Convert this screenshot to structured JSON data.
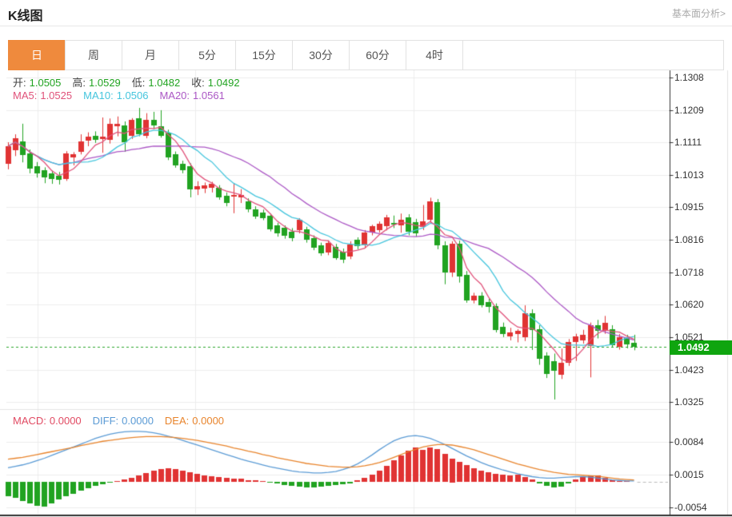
{
  "header": {
    "title": "K线图",
    "analysis_link": "基本面分析>"
  },
  "tabs": {
    "items": [
      "日",
      "周",
      "月",
      "5分",
      "15分",
      "30分",
      "60分",
      "4时"
    ],
    "active_index": 0
  },
  "legend": {
    "open_label": "开:",
    "open": "1.0505",
    "high_label": "高:",
    "high": "1.0529",
    "low_label": "低:",
    "low": "1.0482",
    "close_label": "收:",
    "close": "1.0492"
  },
  "ma_legend": {
    "ma5_label": "MA5:",
    "ma5": "1.0525",
    "ma10_label": "MA10:",
    "ma10": "1.0506",
    "ma20_label": "MA20:",
    "ma20": "1.0561"
  },
  "macd_legend": {
    "macd_label": "MACD:",
    "macd": "0.0000",
    "diff_label": "DIFF:",
    "diff": "0.0000",
    "dea_label": "DEA:",
    "dea": "0.0000"
  },
  "price_axis": {
    "ticks": [
      "1.1308",
      "1.1209",
      "1.1111",
      "1.1013",
      "1.0915",
      "1.0816",
      "1.0718",
      "1.0620",
      "1.0521",
      "1.0423",
      "1.0325"
    ],
    "current_price": "1.0492"
  },
  "macd_axis": {
    "ticks": [
      "0.0084",
      "0.0015",
      "-0.0054"
    ]
  },
  "colors": {
    "up": "#e03333",
    "down": "#21a321",
    "badge_bg": "#0fa50f",
    "ma5": "#e0527a",
    "ma10": "#45c5dd",
    "ma20": "#ab57c5",
    "diff": "#5b9bd5",
    "dea": "#e8842c",
    "macd_text": "#e14b63",
    "grid": "#ececec",
    "dotted_line": "#2aa52a",
    "axis": "#333333",
    "tab_active_bg": "#ef8a3d",
    "value_green": "#21a321"
  },
  "chart_data": [
    {
      "type": "candlestick",
      "title": "K线图 (daily K-line, 日)",
      "ylabel": "price",
      "ylim": [
        1.0308,
        1.1337
      ],
      "y_ticks": [
        1.1308,
        1.1209,
        1.1111,
        1.1013,
        1.0915,
        1.0816,
        1.0718,
        1.062,
        1.0521,
        1.0423,
        1.0325
      ],
      "grid": true,
      "up_is_red": true,
      "current_price": 1.0492,
      "last_ohlc": {
        "open": 1.0505,
        "high": 1.0529,
        "low": 1.0482,
        "close": 1.0492
      },
      "ma_last": {
        "MA5": 1.0525,
        "MA10": 1.0506,
        "MA20": 1.0561
      },
      "candles": [
        [
          1.1047,
          1.1112,
          1.103,
          1.11
        ],
        [
          1.1088,
          1.1136,
          1.107,
          1.1124
        ],
        [
          1.1115,
          1.1168,
          1.1051,
          1.1075
        ],
        [
          1.1078,
          1.109,
          1.1018,
          1.1032
        ],
        [
          1.104,
          1.1052,
          1.1005,
          1.1018
        ],
        [
          1.1028,
          1.1036,
          1.0988,
          1.1006
        ],
        [
          1.1018,
          1.1026,
          1.0986,
          1.1
        ],
        [
          1.101,
          1.1022,
          1.0984,
          1.0998
        ],
        [
          1.1,
          1.1085,
          1.0995,
          1.1078
        ],
        [
          1.1066,
          1.1082,
          1.1042,
          1.1075
        ],
        [
          1.1083,
          1.1136,
          1.1075,
          1.1114
        ],
        [
          1.1119,
          1.1142,
          1.11,
          1.113
        ],
        [
          1.1132,
          1.1145,
          1.111,
          1.1119
        ],
        [
          1.112,
          1.1187,
          1.108,
          1.1128
        ],
        [
          1.1119,
          1.1184,
          1.1108,
          1.1167
        ],
        [
          1.116,
          1.119,
          1.113,
          1.1168
        ],
        [
          1.1162,
          1.1175,
          1.1083,
          1.1111
        ],
        [
          1.1131,
          1.1185,
          1.1122,
          1.1179
        ],
        [
          1.1184,
          1.1216,
          1.113,
          1.1136
        ],
        [
          1.1131,
          1.12,
          1.1124,
          1.1179
        ],
        [
          1.1179,
          1.1204,
          1.1152,
          1.1162
        ],
        [
          1.116,
          1.1209,
          1.1126,
          1.1131
        ],
        [
          1.114,
          1.115,
          1.1058,
          1.1066
        ],
        [
          1.1075,
          1.1084,
          1.1035,
          1.1042
        ],
        [
          1.1047,
          1.1056,
          1.1018,
          1.1027
        ],
        [
          1.104,
          1.1048,
          1.0945,
          1.0969
        ],
        [
          1.0969,
          1.0994,
          1.0952,
          1.0979
        ],
        [
          1.0972,
          1.099,
          1.0958,
          1.0982
        ],
        [
          1.0974,
          1.0992,
          1.096,
          1.0986
        ],
        [
          1.0974,
          1.0982,
          1.0938,
          1.0945
        ],
        [
          1.095,
          1.096,
          1.0918,
          1.0928
        ],
        [
          1.0948,
          1.0988,
          1.0897,
          1.0952
        ],
        [
          1.0945,
          1.097,
          1.0928,
          1.0952
        ],
        [
          1.0933,
          1.0942,
          1.09,
          1.0909
        ],
        [
          1.0909,
          1.0918,
          1.088,
          1.0888
        ],
        [
          1.09,
          1.0908,
          1.0876,
          1.0884
        ],
        [
          1.0889,
          1.0896,
          1.0842,
          1.0848
        ],
        [
          1.086,
          1.0868,
          1.0826,
          1.0835
        ],
        [
          1.0852,
          1.086,
          1.082,
          1.0828
        ],
        [
          1.084,
          1.0852,
          1.0812,
          1.082
        ],
        [
          1.0845,
          1.0882,
          1.0836,
          1.0877
        ],
        [
          1.0848,
          1.0856,
          1.0808,
          1.0816
        ],
        [
          1.0821,
          1.083,
          1.0785,
          1.0792
        ],
        [
          1.08,
          1.0808,
          1.0768,
          1.0775
        ],
        [
          1.0779,
          1.0815,
          1.077,
          1.0808
        ],
        [
          1.0796,
          1.0804,
          1.0756,
          1.0762
        ],
        [
          1.078,
          1.079,
          1.0746,
          1.0755
        ],
        [
          1.0767,
          1.0812,
          1.0758,
          1.0803
        ],
        [
          1.0816,
          1.0824,
          1.0788,
          1.0796
        ],
        [
          1.08,
          1.0846,
          1.0792,
          1.0838
        ],
        [
          1.0838,
          1.0862,
          1.083,
          1.0857
        ],
        [
          1.0846,
          1.0872,
          1.0838,
          1.0865
        ],
        [
          1.0857,
          1.0892,
          1.0845,
          1.0884
        ],
        [
          1.0868,
          1.089,
          1.0852,
          1.0862
        ],
        [
          1.0862,
          1.0896,
          1.0838,
          1.0878
        ],
        [
          1.0884,
          1.0894,
          1.083,
          1.084
        ],
        [
          1.087,
          1.088,
          1.0826,
          1.0836
        ],
        [
          1.0856,
          1.0922,
          1.0846,
          1.0872
        ],
        [
          1.0877,
          1.0944,
          1.0868,
          1.0933
        ],
        [
          1.093,
          1.094,
          1.0788,
          1.08
        ],
        [
          1.08,
          1.0812,
          1.0682,
          1.0718
        ],
        [
          1.0718,
          1.0812,
          1.0704,
          1.0805
        ],
        [
          1.0805,
          1.0814,
          1.0687,
          1.0706
        ],
        [
          1.0711,
          1.0722,
          1.0626,
          1.0633
        ],
        [
          1.0633,
          1.0656,
          1.0624,
          1.0648
        ],
        [
          1.0648,
          1.0658,
          1.0612,
          1.0618
        ],
        [
          1.0628,
          1.0638,
          1.0596,
          1.0613
        ],
        [
          1.0616,
          1.0624,
          1.0536,
          1.0543
        ],
        [
          1.0552,
          1.0566,
          1.0522,
          1.0531
        ],
        [
          1.0525,
          1.055,
          1.0512,
          1.0536
        ],
        [
          1.053,
          1.0546,
          1.0506,
          1.054
        ],
        [
          1.0521,
          1.0618,
          1.051,
          1.0593
        ],
        [
          1.0593,
          1.0606,
          1.0483,
          1.0543
        ],
        [
          1.0545,
          1.0558,
          1.0438,
          1.0455
        ],
        [
          1.0466,
          1.0476,
          1.0398,
          1.041
        ],
        [
          1.045,
          1.0472,
          1.0333,
          1.042
        ],
        [
          1.0408,
          1.0487,
          1.0395,
          1.0445
        ],
        [
          1.0445,
          1.0516,
          1.0435,
          1.0508
        ],
        [
          1.0508,
          1.0532,
          1.045,
          1.0525
        ],
        [
          1.0512,
          1.0544,
          1.0502,
          1.053
        ],
        [
          1.0495,
          1.0566,
          1.04,
          1.0559
        ],
        [
          1.0559,
          1.0574,
          1.0518,
          1.0541
        ],
        [
          1.0541,
          1.0586,
          1.0532,
          1.0566
        ],
        [
          1.0545,
          1.0558,
          1.0492,
          1.0497
        ],
        [
          1.0492,
          1.0531,
          1.0484,
          1.0521
        ],
        [
          1.0521,
          1.0529,
          1.0488,
          1.05
        ],
        [
          1.0505,
          1.0529,
          1.0482,
          1.0492
        ]
      ]
    },
    {
      "type": "bar",
      "title": "MACD (12,26,9)",
      "note": "hist/diff/dea values are in units of 0.0001",
      "y_ticks": [
        0.0084,
        0.0015,
        -0.0054
      ],
      "last_values": {
        "MACD": 0.0,
        "DIFF": 0.0,
        "DEA": 0.0
      },
      "hist": [
        -30,
        -34,
        -40,
        -46,
        -50,
        -52,
        -46,
        -38,
        -31,
        -25,
        -19,
        -14,
        -9,
        -5,
        -2,
        2,
        5,
        9,
        13,
        18,
        23,
        27,
        29,
        27,
        24,
        20,
        17,
        14,
        12,
        10,
        8,
        7,
        6,
        4,
        3,
        2,
        -2,
        -4,
        -6,
        -8,
        -10,
        -12,
        -12,
        -11,
        -9,
        -7,
        -5,
        -3,
        3,
        8,
        15,
        24,
        34,
        45,
        56,
        66,
        73,
        68,
        73,
        70,
        60,
        50,
        42,
        35,
        29,
        24,
        20,
        17,
        15,
        14,
        16,
        11,
        5,
        -3,
        -8,
        -12,
        -10,
        -4,
        5,
        10,
        14,
        13,
        9,
        4,
        2,
        1,
        0
      ],
      "diff": [
        30,
        33,
        36,
        40,
        45,
        50,
        56,
        62,
        68,
        74,
        80,
        86,
        92,
        97,
        101,
        104,
        106,
        107,
        107,
        106,
        104,
        101,
        97,
        93,
        88,
        83,
        78,
        73,
        68,
        63,
        58,
        53,
        48,
        44,
        40,
        36,
        32,
        29,
        26,
        23,
        21,
        20,
        19,
        19,
        20,
        22,
        26,
        31,
        38,
        47,
        57,
        68,
        78,
        87,
        93,
        97,
        98,
        96,
        92,
        86,
        79,
        71,
        63,
        55,
        48,
        41,
        35,
        30,
        25,
        21,
        17,
        14,
        11,
        9,
        8,
        8,
        9,
        10,
        11,
        11,
        10,
        8,
        6,
        4,
        3,
        2,
        2
      ],
      "dea": [
        48,
        50,
        52,
        55,
        58,
        61,
        64,
        67,
        70,
        73,
        77,
        80,
        83,
        86,
        88,
        90,
        92,
        94,
        95,
        96,
        96,
        96,
        95,
        94,
        92,
        90,
        88,
        85,
        82,
        79,
        76,
        72,
        69,
        65,
        62,
        58,
        55,
        51,
        48,
        45,
        42,
        39,
        37,
        35,
        33,
        32,
        31,
        31,
        32,
        34,
        37,
        41,
        46,
        52,
        58,
        64,
        69,
        74,
        77,
        79,
        79,
        78,
        75,
        72,
        68,
        63,
        58,
        53,
        48,
        43,
        38,
        34,
        30,
        26,
        23,
        20,
        18,
        16,
        15,
        14,
        13,
        12,
        10,
        8,
        6,
        5,
        4
      ]
    }
  ]
}
